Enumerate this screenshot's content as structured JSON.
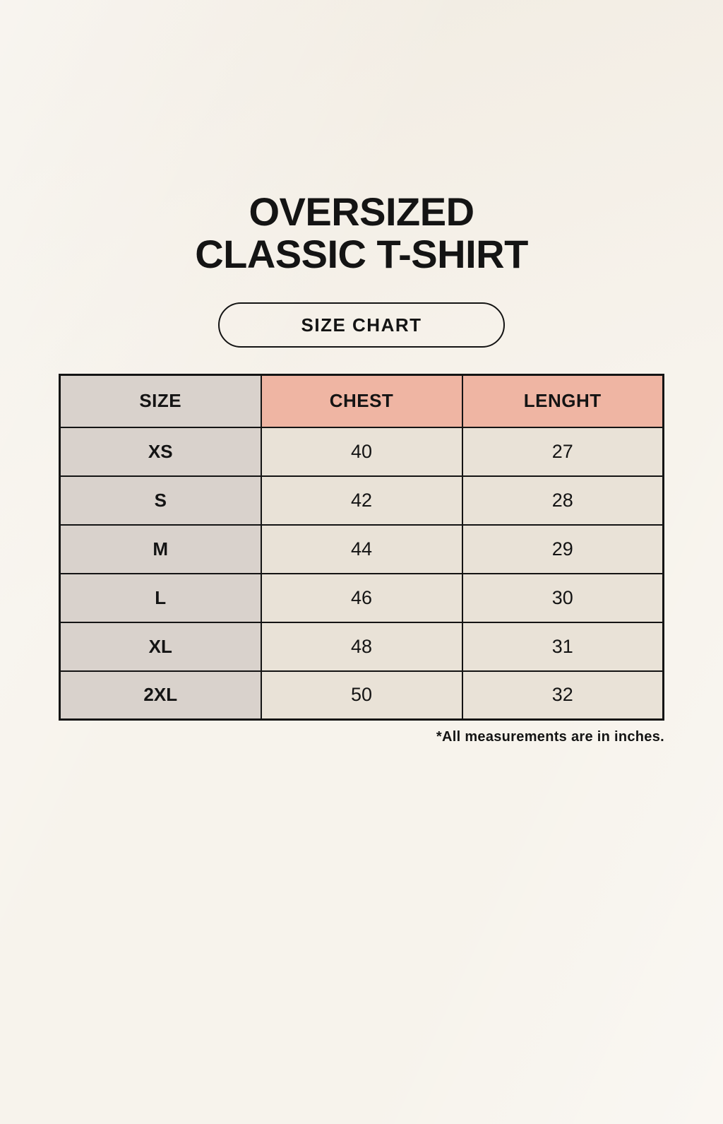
{
  "header": {
    "title_line1": "OVERSIZED",
    "title_line2": "CLASSIC T-SHIRT",
    "badge_label": "SIZE CHART"
  },
  "footnote": "*All measurements are in inches.",
  "colors": {
    "background": "#f7f3ec",
    "size_column_bg": "#d9d2cc",
    "accent_header_bg": "#efb5a3",
    "data_cell_bg": "#e9e2d7",
    "border": "#141414",
    "text": "#141414"
  },
  "chart_data": {
    "type": "table",
    "title": "OVERSIZED CLASSIC T-SHIRT",
    "columns": [
      "SIZE",
      "CHEST",
      "LENGHT"
    ],
    "rows": [
      [
        "XS",
        "40",
        "27"
      ],
      [
        "S",
        "42",
        "28"
      ],
      [
        "M",
        "44",
        "29"
      ],
      [
        "L",
        "46",
        "30"
      ],
      [
        "XL",
        "48",
        "31"
      ],
      [
        "2XL",
        "50",
        "32"
      ]
    ],
    "note": "*All measurements are in inches.",
    "units": "inches"
  }
}
